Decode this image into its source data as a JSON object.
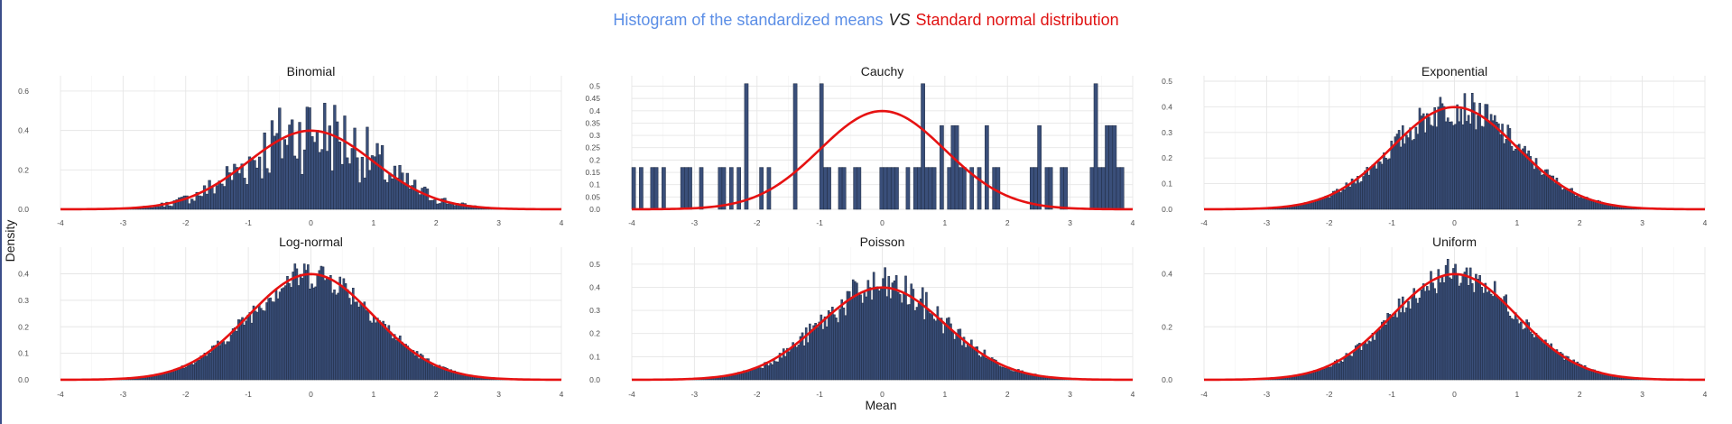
{
  "title": {
    "part1": "Histogram of the standardized means",
    "part2": "VS",
    "part3": "Standard normal distribution"
  },
  "colors": {
    "title_part1": "#5b8ee6",
    "title_part3": "#e01212",
    "bar_fill": "#3a4f7a",
    "bar_outline": "#1f2a40",
    "curve": "#e61212"
  },
  "chart_data": {
    "type": "bar",
    "overlay": "standard normal density curve (line)",
    "xlabel": "Mean",
    "ylabel": "Density",
    "grid": true,
    "panels": [
      {
        "name": "Binomial",
        "xlim": [
          -4,
          4
        ],
        "ylim": [
          0,
          0.65
        ],
        "x_ticks": [
          -4,
          -3,
          -2,
          -1,
          0,
          1,
          2,
          3,
          4
        ],
        "y_ticks": [
          "0.0",
          "0.2",
          "0.4",
          "0.6"
        ],
        "bin_width": 0.04,
        "bins_from": -3.3,
        "bins_to": 3.3,
        "bin_x_min": -3.4,
        "bin_x_max": 3.4,
        "jitter": 0.55,
        "approx_peak_density": 0.6
      },
      {
        "name": "Cauchy",
        "xlim": [
          -4,
          4
        ],
        "ylim": [
          0,
          0.52
        ],
        "x_ticks": [
          -4,
          -3,
          -2,
          -1,
          0,
          1,
          2,
          3,
          4
        ],
        "y_ticks": [
          "0.0",
          "0.05",
          "0.1",
          "0.15",
          "0.2",
          "0.25",
          "0.3",
          "0.35",
          "0.4",
          "0.45",
          "0.5"
        ],
        "bin_width": 0.06,
        "discrete_levels": [
          0.17,
          0.34,
          0.51
        ],
        "note": "sparse histogram: each nonzero bin is 0.17, 0.34 or 0.51",
        "bin_x_min": -4,
        "bin_x_max": 4
      },
      {
        "name": "Exponential",
        "xlim": [
          -4,
          4
        ],
        "ylim": [
          0,
          0.5
        ],
        "x_ticks": [
          -4,
          -3,
          -2,
          -1,
          0,
          1,
          2,
          3,
          4
        ],
        "y_ticks": [
          "0.0",
          "0.1",
          "0.2",
          "0.3",
          "0.4",
          "0.5"
        ],
        "bin_width": 0.03,
        "bins_from": -3.2,
        "bins_to": 3.3,
        "bin_x_min": -3.3,
        "bin_x_max": 3.3,
        "jitter": 0.18
      },
      {
        "name": "Log-normal",
        "xlim": [
          -4,
          4
        ],
        "ylim": [
          0,
          0.48
        ],
        "x_ticks": [
          -4,
          -3,
          -2,
          -1,
          0,
          1,
          2,
          3,
          4
        ],
        "y_ticks": [
          "0.0",
          "0.1",
          "0.2",
          "0.3",
          "0.4"
        ],
        "bin_width": 0.03,
        "bins_from": -3.2,
        "bins_to": 3.5,
        "bin_x_min": -3.3,
        "bin_x_max": 3.6,
        "jitter": 0.15
      },
      {
        "name": "Poisson",
        "xlim": [
          -4,
          4
        ],
        "ylim": [
          0,
          0.55
        ],
        "x_ticks": [
          -4,
          -3,
          -2,
          -1,
          0,
          1,
          2,
          3,
          4
        ],
        "y_ticks": [
          "0.0",
          "0.1",
          "0.2",
          "0.3",
          "0.4",
          "0.5"
        ],
        "bin_width": 0.03,
        "bins_from": -3.2,
        "bins_to": 3.3,
        "bin_x_min": -3.3,
        "bin_x_max": 3.4,
        "jitter": 0.22
      },
      {
        "name": "Uniform",
        "xlim": [
          -4,
          4
        ],
        "ylim": [
          0,
          0.48
        ],
        "x_ticks": [
          -4,
          -3,
          -2,
          -1,
          0,
          1,
          2,
          3,
          4
        ],
        "y_ticks": [
          "0.0",
          "0.2",
          "0.4"
        ],
        "bin_width": 0.03,
        "bins_from": -3.2,
        "bins_to": 3.3,
        "bin_x_min": -3.3,
        "bin_x_max": 3.4,
        "jitter": 0.15
      }
    ]
  }
}
